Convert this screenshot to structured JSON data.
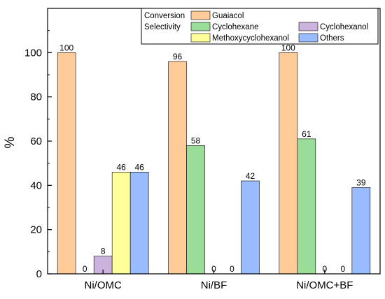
{
  "chart_data": {
    "type": "bar",
    "title": "",
    "xlabel": "",
    "ylabel": "%",
    "ylim": [
      0,
      120
    ],
    "yticks": [
      0,
      20,
      40,
      60,
      80,
      100
    ],
    "grid": false,
    "legend_position": "top-right",
    "legend_groups": {
      "conversion": "Conversion",
      "selectivity": "Selectivity"
    },
    "categories": [
      "Ni/OMC",
      "Ni/BF",
      "Ni/OMC+BF"
    ],
    "series": [
      {
        "name": "Guaiacol",
        "group": "conversion",
        "color": "#FFCC99",
        "values": [
          100,
          96,
          100
        ]
      },
      {
        "name": "Cyclohexane",
        "group": "selectivity",
        "color": "#99DD99",
        "values": [
          0,
          58,
          61
        ]
      },
      {
        "name": "Cyclohexanol",
        "group": "selectivity",
        "color": "#CCB3DD",
        "values": [
          8,
          0,
          0
        ]
      },
      {
        "name": "Methoxycyclohexanol",
        "group": "selectivity",
        "color": "#FFFF99",
        "values": [
          46,
          0,
          0
        ]
      },
      {
        "name": "Others",
        "group": "selectivity",
        "color": "#99BBFF",
        "values": [
          46,
          42,
          39
        ]
      }
    ]
  }
}
